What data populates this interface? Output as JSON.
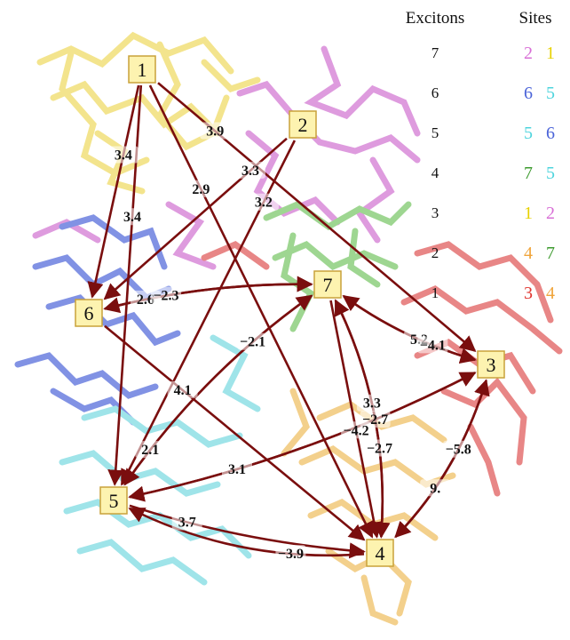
{
  "legend": {
    "excitons_header": "Excitons",
    "sites_header": "Sites",
    "rows": [
      {
        "exciton": "7",
        "sites": [
          {
            "t": "2",
            "c": "#d86fd6"
          },
          {
            "t": "1",
            "c": "#e7d100"
          }
        ]
      },
      {
        "exciton": "6",
        "sites": [
          {
            "t": "6",
            "c": "#4a63d8"
          },
          {
            "t": "5",
            "c": "#4cd4dd"
          }
        ]
      },
      {
        "exciton": "5",
        "sites": [
          {
            "t": "5",
            "c": "#4cd4dd"
          },
          {
            "t": "6",
            "c": "#4a63d8"
          }
        ]
      },
      {
        "exciton": "4",
        "sites": [
          {
            "t": "7",
            "c": "#3c9a2e"
          },
          {
            "t": "5",
            "c": "#4cd4dd"
          }
        ]
      },
      {
        "exciton": "3",
        "sites": [
          {
            "t": "1",
            "c": "#e7d100"
          },
          {
            "t": "2",
            "c": "#d86fd6"
          }
        ]
      },
      {
        "exciton": "2",
        "sites": [
          {
            "t": "4",
            "c": "#f0a43a"
          },
          {
            "t": "7",
            "c": "#3c9a2e"
          }
        ]
      },
      {
        "exciton": "1",
        "sites": [
          {
            "t": "3",
            "c": "#e0342e"
          },
          {
            "t": "4",
            "c": "#f0a43a"
          }
        ]
      }
    ]
  },
  "colors": {
    "arrow": "#7a0e0e",
    "site1": "#f2e07a",
    "site2": "#d98ad9",
    "site3": "#e57171",
    "site4": "#f2c878",
    "site5": "#8fe0e6",
    "site6": "#6c80e0",
    "site7": "#8ed07e"
  },
  "nodes": [
    {
      "id": "1",
      "label": "1"
    },
    {
      "id": "2",
      "label": "2"
    },
    {
      "id": "3",
      "label": "3"
    },
    {
      "id": "4",
      "label": "4"
    },
    {
      "id": "5",
      "label": "5"
    },
    {
      "id": "6",
      "label": "6"
    },
    {
      "id": "7",
      "label": "7"
    }
  ],
  "edges": [
    {
      "from": "1",
      "to": "6",
      "label": "3.4"
    },
    {
      "from": "1",
      "to": "5",
      "label": "3.4"
    },
    {
      "from": "1",
      "to": "3",
      "label": "3.9"
    },
    {
      "from": "1",
      "to": "4",
      "label": "2.9"
    },
    {
      "from": "2",
      "to": "6",
      "label": "3.3"
    },
    {
      "from": "2",
      "to": "5",
      "label": "3.2"
    },
    {
      "from": "6",
      "to": "7",
      "label": "2.6"
    },
    {
      "from": "7",
      "to": "6",
      "label": "−2.3"
    },
    {
      "from": "6",
      "to": "4",
      "label": "4.1"
    },
    {
      "from": "3",
      "to": "7",
      "label": "5.2"
    },
    {
      "from": "7",
      "to": "3",
      "label": "−4.1"
    },
    {
      "from": "5",
      "to": "7",
      "label": "−2.1"
    },
    {
      "from": "7",
      "to": "5",
      "label": "2.1"
    },
    {
      "from": "7",
      "to": "4",
      "label": "3.3"
    },
    {
      "from": "4",
      "to": "7",
      "label": "−2.7"
    },
    {
      "from": "5",
      "to": "3",
      "label": "3.1"
    },
    {
      "from": "3",
      "to": "5",
      "label": "−2.7"
    },
    {
      "from": "3",
      "to": "4",
      "label": "−5.8"
    },
    {
      "from": "4",
      "to": "3",
      "label": "9."
    },
    {
      "from": "5",
      "to": "4",
      "label": "3.7"
    },
    {
      "from": "4",
      "to": "5",
      "label": "−3.9"
    },
    {
      "from": "7",
      "to": "4",
      "label": "−4.2"
    }
  ]
}
